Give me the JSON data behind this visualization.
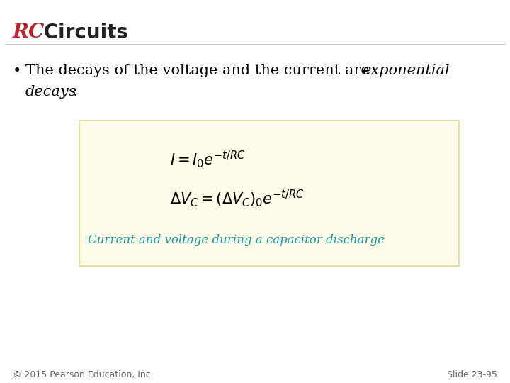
{
  "title_rc": "RC",
  "title_circuits": " Circuits",
  "title_color_rc": "#b5272b",
  "title_color_circuits": "#222222",
  "title_fontsize": 20,
  "bullet_fontsize": 15,
  "box_facecolor": "#fefce8",
  "box_edgecolor": "#e0d890",
  "eq1": "$I = I_0e^{-t/RC}$",
  "eq2": "$\\Delta V_C = (\\Delta V_C)_0e^{-t/RC}$",
  "eq_fontsize": 15,
  "caption": "Current and voltage during a capacitor discharge",
  "caption_color": "#2299aa",
  "caption_fontsize": 12,
  "footer_left": "© 2015 Pearson Education, Inc.",
  "footer_right": "Slide 23-95",
  "footer_fontsize": 9,
  "bg_color": "#ffffff"
}
